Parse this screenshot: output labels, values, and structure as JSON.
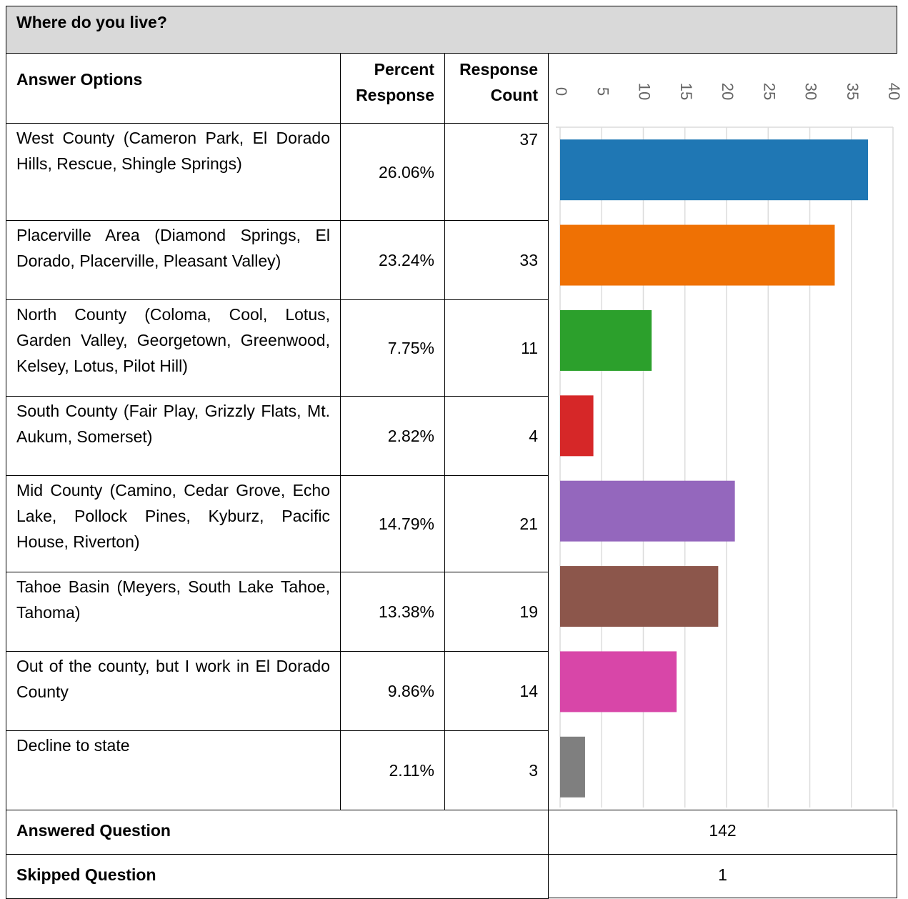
{
  "title": "Where do you live?",
  "table": {
    "headers": [
      "Answer Options",
      "Percent Response",
      "Response Count"
    ],
    "rows": [
      {
        "label": "West County (Cameron Park, El Dorado Hills, Rescue, Shingle Springs)",
        "percent": "26.06%",
        "count": 37
      },
      {
        "label": "Placerville Area (Diamond Springs, El Dorado, Placerville, Pleasant Valley)",
        "percent": "23.24%",
        "count": 33
      },
      {
        "label": "North County (Coloma, Cool, Lotus, Garden Valley, Georgetown, Greenwood, Kelsey, Lotus, Pilot Hill)",
        "percent": "7.75%",
        "count": 11
      },
      {
        "label": "South County (Fair Play, Grizzly Flats, Mt. Aukum, Somerset)",
        "percent": "2.82%",
        "count": 4
      },
      {
        "label": "Mid County (Camino, Cedar Grove, Echo Lake, Pollock Pines, Kyburz, Pacific House, Riverton)",
        "percent": "14.79%",
        "count": 21
      },
      {
        "label": "Tahoe Basin (Meyers, South Lake Tahoe, Tahoma)",
        "percent": "13.38%",
        "count": 19
      },
      {
        "label": "Out of the county, but I work in El Dorado County",
        "percent": "9.86%",
        "count": 14
      },
      {
        "label": "Decline to state",
        "percent": "2.11%",
        "count": 3
      }
    ],
    "footer": [
      {
        "label": "Answered Question",
        "value": "142"
      },
      {
        "label": "Skipped Question",
        "value": "1"
      }
    ]
  },
  "chart": {
    "type": "bar",
    "orientation": "horizontal",
    "xlim": [
      0,
      40
    ],
    "xticks": [
      0,
      5,
      10,
      15,
      20,
      25,
      30,
      35,
      40
    ],
    "grid": true,
    "colors": [
      "#1f77b4",
      "#ef7104",
      "#2ca02c",
      "#d62728",
      "#9467bd",
      "#8c564b",
      "#d846a8",
      "#7f7f7f"
    ]
  }
}
